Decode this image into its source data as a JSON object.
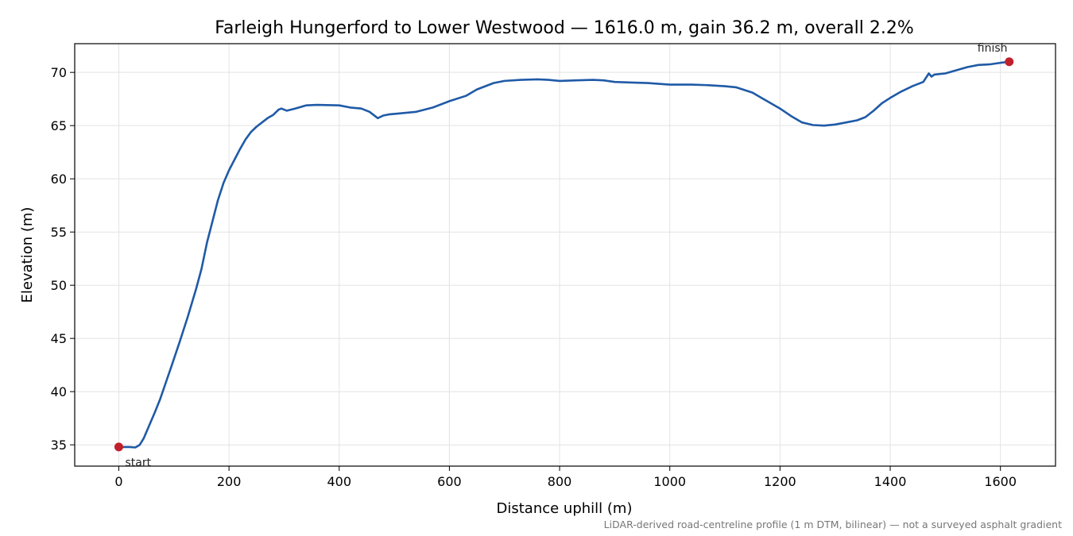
{
  "chart_data": {
    "type": "line",
    "title": "Farleigh Hungerford to Lower Westwood — 1616.0 m, gain 36.2 m, overall 2.2%",
    "xlabel": "Distance uphill (m)",
    "ylabel": "Elevation (m)",
    "xlim": [
      -80,
      1700
    ],
    "ylim": [
      33,
      72.7
    ],
    "grid": true,
    "xticks": [
      0,
      200,
      400,
      600,
      800,
      1000,
      1200,
      1400,
      1600
    ],
    "yticks": [
      35,
      40,
      45,
      50,
      55,
      60,
      65,
      70
    ],
    "line_color": "#1f5aa6",
    "marker_color": "#c0202a",
    "series": [
      {
        "name": "",
        "points": [
          [
            0,
            34.8
          ],
          [
            20,
            34.8
          ],
          [
            30,
            34.75
          ],
          [
            38,
            35.0
          ],
          [
            45,
            35.6
          ],
          [
            55,
            36.8
          ],
          [
            65,
            38.0
          ],
          [
            75,
            39.3
          ],
          [
            85,
            40.8
          ],
          [
            95,
            42.3
          ],
          [
            110,
            44.6
          ],
          [
            125,
            47.0
          ],
          [
            140,
            49.6
          ],
          [
            150,
            51.5
          ],
          [
            160,
            54.0
          ],
          [
            170,
            56.0
          ],
          [
            180,
            58.0
          ],
          [
            190,
            59.6
          ],
          [
            200,
            60.8
          ],
          [
            210,
            61.8
          ],
          [
            220,
            62.8
          ],
          [
            230,
            63.7
          ],
          [
            240,
            64.4
          ],
          [
            250,
            64.9
          ],
          [
            260,
            65.3
          ],
          [
            270,
            65.7
          ],
          [
            280,
            66.0
          ],
          [
            290,
            66.5
          ],
          [
            295,
            66.6
          ],
          [
            305,
            66.4
          ],
          [
            320,
            66.6
          ],
          [
            340,
            66.9
          ],
          [
            360,
            66.95
          ],
          [
            400,
            66.9
          ],
          [
            420,
            66.7
          ],
          [
            440,
            66.6
          ],
          [
            455,
            66.3
          ],
          [
            470,
            65.7
          ],
          [
            480,
            65.95
          ],
          [
            490,
            66.05
          ],
          [
            510,
            66.15
          ],
          [
            540,
            66.3
          ],
          [
            570,
            66.7
          ],
          [
            600,
            67.3
          ],
          [
            630,
            67.8
          ],
          [
            650,
            68.4
          ],
          [
            680,
            69.0
          ],
          [
            700,
            69.2
          ],
          [
            730,
            69.3
          ],
          [
            760,
            69.35
          ],
          [
            780,
            69.3
          ],
          [
            800,
            69.2
          ],
          [
            830,
            69.25
          ],
          [
            860,
            69.3
          ],
          [
            880,
            69.25
          ],
          [
            900,
            69.1
          ],
          [
            930,
            69.05
          ],
          [
            960,
            69.0
          ],
          [
            1000,
            68.85
          ],
          [
            1040,
            68.85
          ],
          [
            1070,
            68.8
          ],
          [
            1100,
            68.7
          ],
          [
            1120,
            68.6
          ],
          [
            1150,
            68.1
          ],
          [
            1170,
            67.5
          ],
          [
            1200,
            66.6
          ],
          [
            1220,
            65.9
          ],
          [
            1240,
            65.3
          ],
          [
            1260,
            65.05
          ],
          [
            1280,
            65.0
          ],
          [
            1300,
            65.1
          ],
          [
            1320,
            65.3
          ],
          [
            1340,
            65.5
          ],
          [
            1355,
            65.8
          ],
          [
            1370,
            66.4
          ],
          [
            1385,
            67.1
          ],
          [
            1400,
            67.6
          ],
          [
            1420,
            68.2
          ],
          [
            1440,
            68.7
          ],
          [
            1460,
            69.1
          ],
          [
            1470,
            69.9
          ],
          [
            1475,
            69.6
          ],
          [
            1480,
            69.8
          ],
          [
            1490,
            69.85
          ],
          [
            1500,
            69.9
          ],
          [
            1520,
            70.2
          ],
          [
            1540,
            70.5
          ],
          [
            1560,
            70.7
          ],
          [
            1580,
            70.75
          ],
          [
            1600,
            70.9
          ],
          [
            1616,
            71.0
          ]
        ]
      }
    ],
    "annotations": [
      {
        "text": "start",
        "x": 0,
        "y": 34.8
      },
      {
        "text": "finish",
        "x": 1616,
        "y": 71.0
      }
    ],
    "footnote": "LiDAR-derived road-centreline profile (1 m DTM, bilinear) — not a surveyed asphalt gradient"
  }
}
